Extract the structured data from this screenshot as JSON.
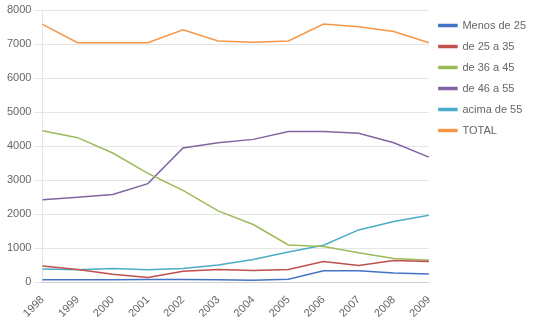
{
  "chart_data": {
    "type": "line",
    "categories": [
      "1998",
      "1999",
      "2000",
      "2001",
      "2002",
      "2003",
      "2004",
      "2005",
      "2006",
      "2007",
      "2008",
      "2009"
    ],
    "series": [
      {
        "name": "Menos de 25",
        "color": "#4472C4",
        "values": [
          80,
          75,
          75,
          85,
          85,
          75,
          65,
          95,
          340,
          340,
          275,
          245
        ]
      },
      {
        "name": "de 25 a 35",
        "color": "#C0504D",
        "values": [
          480,
          375,
          235,
          145,
          325,
          375,
          345,
          375,
          615,
          495,
          645,
          615
        ]
      },
      {
        "name": "de 36 a 45",
        "color": "#9BBB59",
        "values": [
          4450,
          4250,
          3800,
          3200,
          2700,
          2100,
          1700,
          1100,
          1050,
          870,
          700,
          650
        ]
      },
      {
        "name": "de 46 a 55",
        "color": "#8064A2",
        "values": [
          2430,
          2500,
          2580,
          2900,
          3950,
          4100,
          4200,
          4430,
          4430,
          4380,
          4100,
          3680
        ]
      },
      {
        "name": "acima de 55",
        "color": "#4BACC6",
        "values": [
          390,
          370,
          410,
          370,
          410,
          510,
          670,
          890,
          1090,
          1540,
          1790,
          1970
        ]
      },
      {
        "name": "TOTAL",
        "color": "#F79646",
        "values": [
          7580,
          7040,
          7040,
          7040,
          7420,
          7090,
          7050,
          7090,
          7590,
          7510,
          7370,
          7040
        ]
      }
    ],
    "ylim": [
      0,
      8000
    ],
    "yticks": [
      0,
      1000,
      2000,
      3000,
      4000,
      5000,
      6000,
      7000,
      8000
    ],
    "grid": true,
    "legend": "right"
  }
}
